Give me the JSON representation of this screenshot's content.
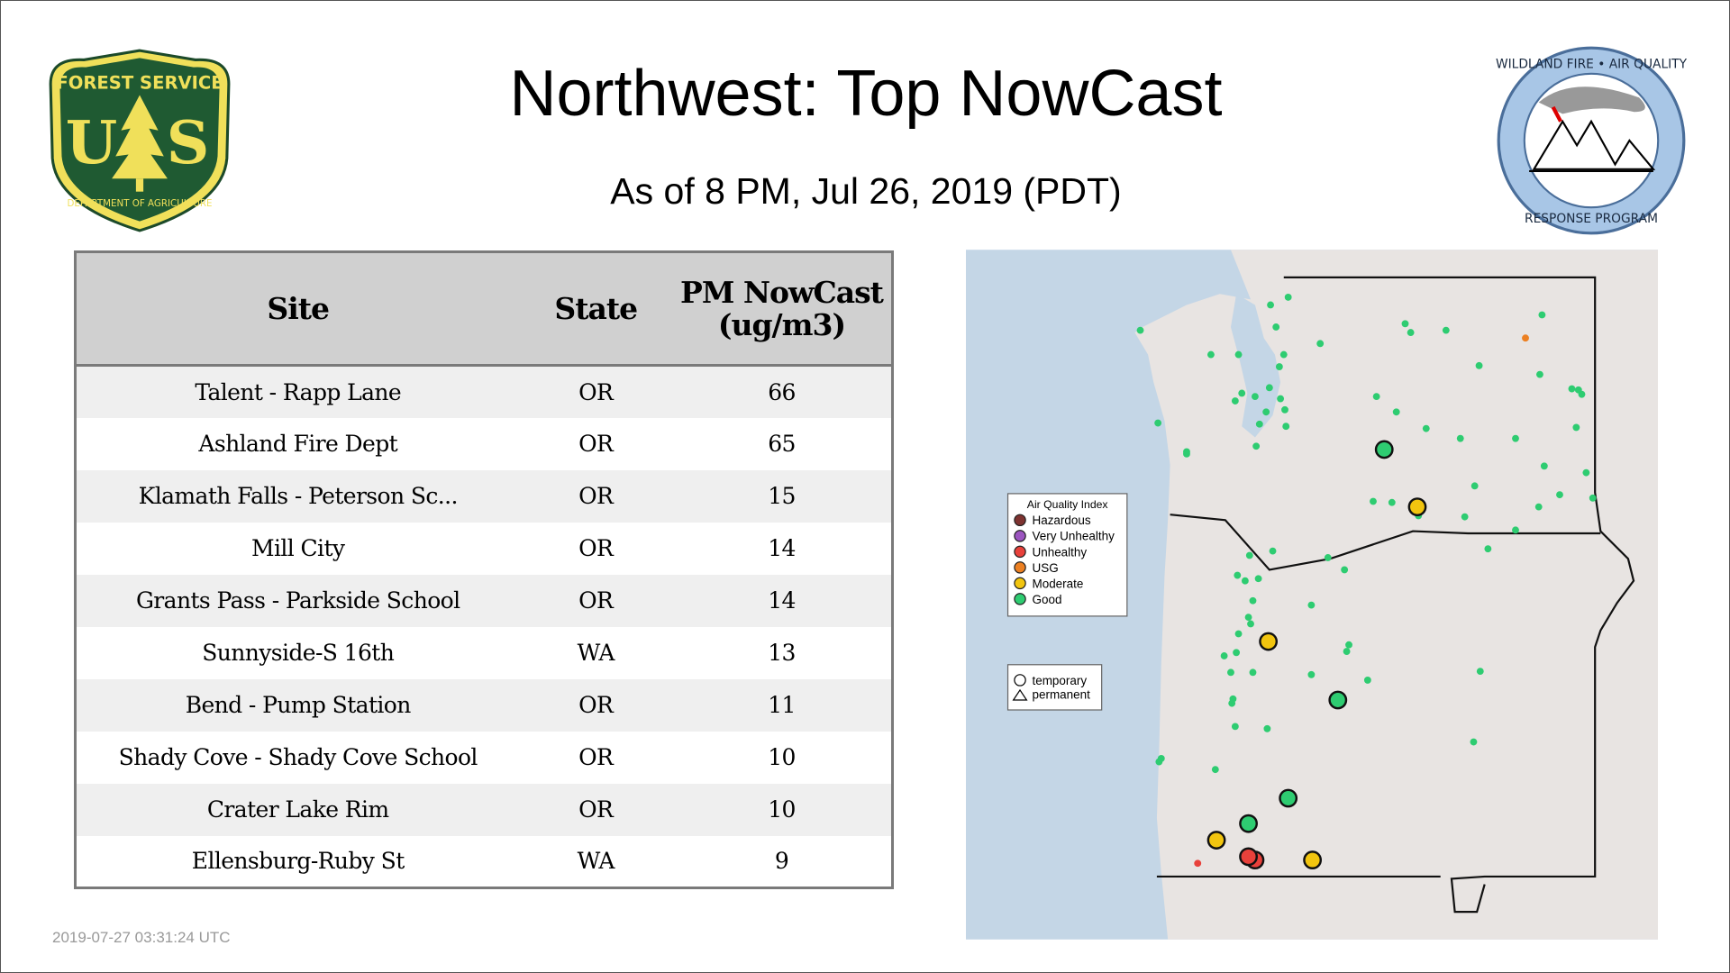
{
  "header": {
    "title": "Northwest: Top NowCast",
    "subtitle": "As of  8 PM, Jul 26, 2019 (PDT)"
  },
  "logos": {
    "left": "FOREST SERVICE U S DEPARTMENT OF AGRICULTURE",
    "right": "WILDLAND FIRE • AIR QUALITY RESPONSE PROGRAM"
  },
  "table": {
    "columns": [
      "Site",
      "State",
      "PM NowCast (ug/m3)"
    ],
    "rows": [
      {
        "site": "Talent - Rapp Lane",
        "state": "OR",
        "value": "66"
      },
      {
        "site": "Ashland Fire Dept",
        "state": "OR",
        "value": "65"
      },
      {
        "site": "Klamath Falls - Peterson Sc...",
        "state": "OR",
        "value": "15"
      },
      {
        "site": "Mill City",
        "state": "OR",
        "value": "14"
      },
      {
        "site": "Grants Pass - Parkside School",
        "state": "OR",
        "value": "14"
      },
      {
        "site": "Sunnyside-S 16th",
        "state": "WA",
        "value": "13"
      },
      {
        "site": "Bend - Pump Station",
        "state": "OR",
        "value": "11"
      },
      {
        "site": "Shady Cove - Shady Cove School",
        "state": "OR",
        "value": "10"
      },
      {
        "site": "Crater Lake Rim",
        "state": "OR",
        "value": "10"
      },
      {
        "site": "Ellensburg-Ruby St",
        "state": "WA",
        "value": "9"
      }
    ]
  },
  "map": {
    "legend_title": "Air Quality Index",
    "legend": [
      {
        "label": "Hazardous",
        "color": "#7e3330"
      },
      {
        "label": "Very Unhealthy",
        "color": "#9c55c0"
      },
      {
        "label": "Unhealthy",
        "color": "#e8413b"
      },
      {
        "label": "USG",
        "color": "#ec8022"
      },
      {
        "label": "Moderate",
        "color": "#f2c50f"
      },
      {
        "label": "Good",
        "color": "#2ecc71"
      }
    ],
    "shape_legend": [
      "temporary",
      "permanent"
    ]
  },
  "footer": {
    "timestamp": "2019-07-27 03:31:24 UTC"
  }
}
